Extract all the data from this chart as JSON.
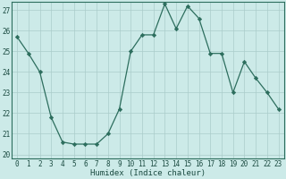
{
  "x": [
    0,
    1,
    2,
    3,
    4,
    5,
    6,
    7,
    8,
    9,
    10,
    11,
    12,
    13,
    14,
    15,
    16,
    17,
    18,
    19,
    20,
    21,
    22,
    23
  ],
  "y": [
    25.7,
    24.9,
    24.0,
    21.8,
    20.6,
    20.5,
    20.5,
    20.5,
    21.0,
    22.2,
    25.0,
    25.8,
    25.8,
    27.3,
    26.1,
    27.2,
    26.6,
    24.9,
    24.9,
    23.0,
    24.5,
    23.7,
    23.0,
    22.2
  ],
  "xlabel": "Humidex (Indice chaleur)",
  "ylim_min": 19.8,
  "ylim_max": 27.4,
  "xlim_min": -0.5,
  "xlim_max": 23.5,
  "yticks": [
    20,
    21,
    22,
    23,
    24,
    25,
    26,
    27
  ],
  "xticks": [
    0,
    1,
    2,
    3,
    4,
    5,
    6,
    7,
    8,
    9,
    10,
    11,
    12,
    13,
    14,
    15,
    16,
    17,
    18,
    19,
    20,
    21,
    22,
    23
  ],
  "line_color": "#2d6e5e",
  "marker": "D",
  "marker_size": 2.2,
  "bg_color": "#cceae8",
  "grid_color": "#aaccca",
  "tick_label_color": "#1a4a40",
  "xlabel_color": "#1a4a40",
  "spine_color": "#2d6e5e",
  "xlabel_fontsize": 6.5,
  "tick_fontsize": 5.5
}
